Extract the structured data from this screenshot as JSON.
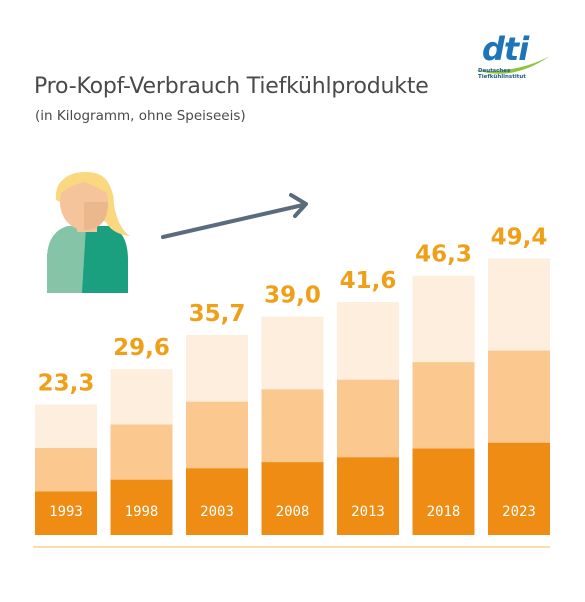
{
  "title": "Pro-Kopf-Verbrauch Tiefkühlprodukte",
  "subtitle": "(in Kilogramm, ohne Speiseeis)",
  "logo": {
    "word": "dti",
    "sub_line1": "Deutsches",
    "sub_line2": "Tiefkühlinstitut"
  },
  "colors": {
    "dark_orange": "#ef8c13",
    "mid_orange": "#fbc98f",
    "light_orange": "#fdeedd",
    "value_label": "#f0a018",
    "axis_line": "#f5b85c",
    "arrow": "#5a6b7e"
  },
  "chart_data": {
    "type": "bar",
    "categories": [
      "1993",
      "1998",
      "2003",
      "2008",
      "2013",
      "2018",
      "2023"
    ],
    "values": [
      23.3,
      29.6,
      35.7,
      39.0,
      41.6,
      46.3,
      49.4
    ],
    "value_labels": [
      "23,3",
      "29,6",
      "35,7",
      "39,0",
      "41,6",
      "46,3",
      "49,4"
    ],
    "title": "Pro-Kopf-Verbrauch Tiefkühlprodukte",
    "subtitle": "(in Kilogramm, ohne Speiseeis)",
    "xlabel": "",
    "ylabel": "",
    "ylim": [
      0,
      50
    ],
    "grid": false,
    "legend": "none"
  }
}
